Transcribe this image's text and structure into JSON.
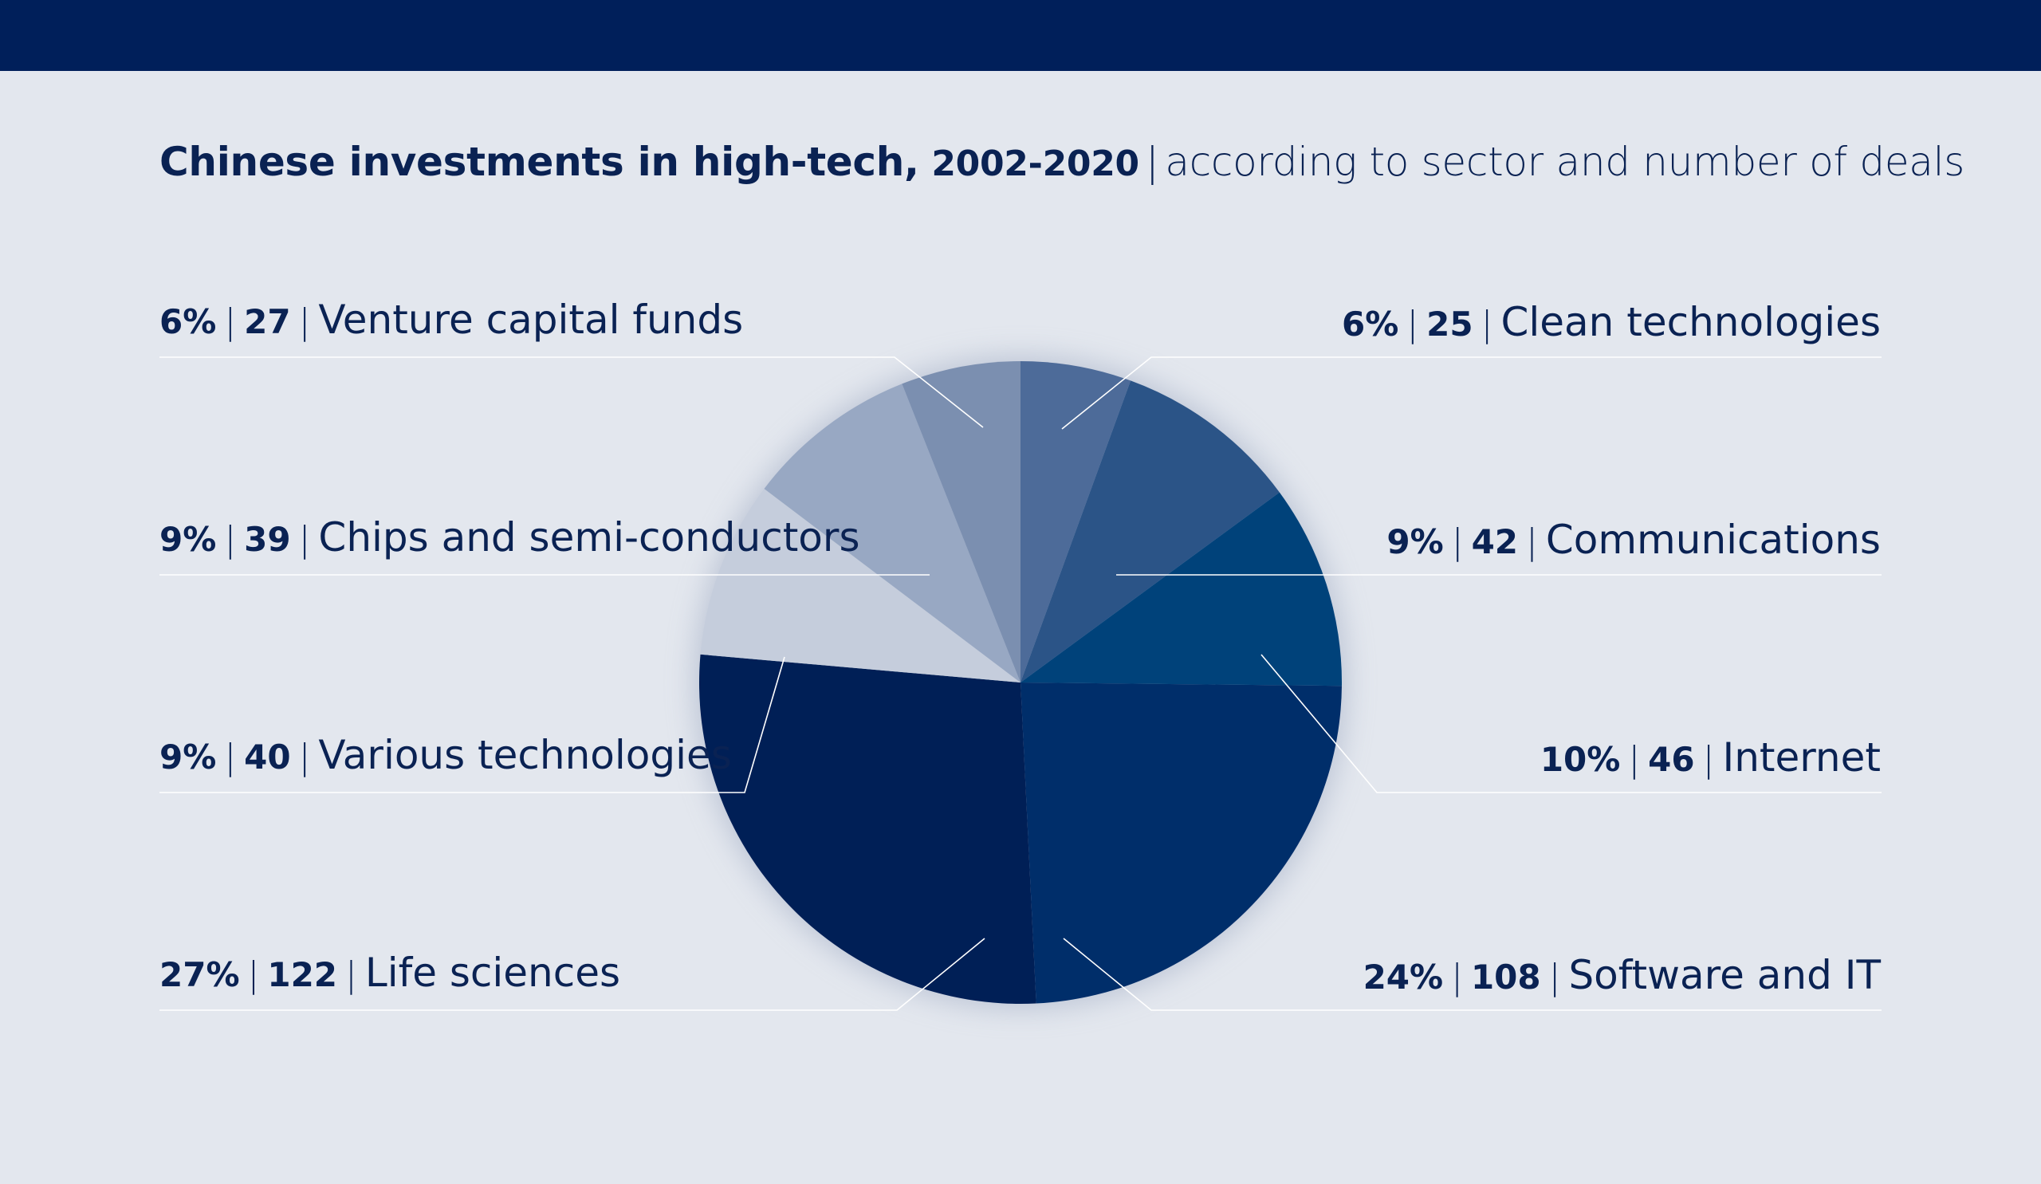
{
  "header": {
    "title_main": "Chinese investments in high-tech,",
    "title_years": "2002-2020",
    "title_separator": "|",
    "subtitle": "according to sector and number of deals"
  },
  "chart_data": {
    "type": "pie",
    "title": "Chinese investments in high-tech, 2002-2020",
    "subtitle": "according to sector and number of deals",
    "slices": [
      {
        "label": "Clean technologies",
        "percent": "6%",
        "deals": "25",
        "value": 25,
        "color": "#4d6b99"
      },
      {
        "label": "Communications",
        "percent": "9%",
        "deals": "42",
        "value": 42,
        "color": "#2b5487"
      },
      {
        "label": "Internet",
        "percent": "10%",
        "deals": "46",
        "value": 46,
        "color": "#00427a"
      },
      {
        "label": "Software and IT",
        "percent": "24%",
        "deals": "108",
        "value": 108,
        "color": "#002e6a"
      },
      {
        "label": "Life sciences",
        "percent": "27%",
        "deals": "122",
        "value": 122,
        "color": "#001f56"
      },
      {
        "label": "Various technologies",
        "percent": "9%",
        "deals": "40",
        "value": 40,
        "color": "#c5cddc"
      },
      {
        "label": "Chips and semi-conductors",
        "percent": "9%",
        "deals": "39",
        "value": 39,
        "color": "#98a8c3"
      },
      {
        "label": "Venture capital funds",
        "percent": "6%",
        "deals": "27",
        "value": 27,
        "color": "#7b8fb0"
      }
    ],
    "legend": "labels around pie"
  }
}
